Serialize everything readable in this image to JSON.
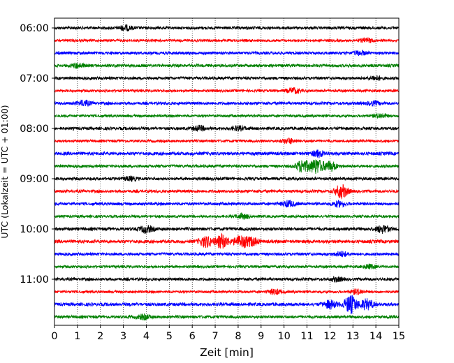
{
  "chart_data": {
    "type": "line",
    "subtype": "helicorder-seismogram",
    "xlabel": "Zeit  [min]",
    "ylabel": "UTC (Lokalzeit = UTC + 01:00)",
    "xlim": [
      0,
      15
    ],
    "x_ticks": [
      "0",
      "1",
      "2",
      "3",
      "4",
      "5",
      "6",
      "7",
      "8",
      "9",
      "10",
      "11",
      "12",
      "13",
      "14",
      "15"
    ],
    "y_ticks": [
      "06:00",
      "07:00",
      "08:00",
      "09:00",
      "10:00",
      "11:00"
    ],
    "grid": "vertical dotted lines at each minute",
    "trace_interval_minutes": 15,
    "first_trace_start": "06:00",
    "colors_cycle": [
      "#000000",
      "#ff0000",
      "#0000ff",
      "#008000"
    ],
    "traces": [
      {
        "start": "06:00",
        "color": "#000000",
        "noise": 0.9,
        "events": [
          {
            "t": 3.1,
            "amp": 1.6
          }
        ]
      },
      {
        "start": "06:15",
        "color": "#ff0000",
        "noise": 0.8,
        "events": [
          {
            "t": 13.6,
            "amp": 1.4
          }
        ]
      },
      {
        "start": "06:30",
        "color": "#0000ff",
        "noise": 0.9,
        "events": [
          {
            "t": 13.3,
            "amp": 1.3
          }
        ]
      },
      {
        "start": "06:45",
        "color": "#008000",
        "noise": 0.9,
        "events": [
          {
            "t": 1.0,
            "amp": 1.5
          }
        ]
      },
      {
        "start": "07:00",
        "color": "#000000",
        "noise": 0.9,
        "events": [
          {
            "t": 14.0,
            "amp": 1.3
          }
        ]
      },
      {
        "start": "07:15",
        "color": "#ff0000",
        "noise": 0.8,
        "events": [
          {
            "t": 10.4,
            "amp": 1.8
          }
        ]
      },
      {
        "start": "07:30",
        "color": "#0000ff",
        "noise": 0.9,
        "events": [
          {
            "t": 1.3,
            "amp": 1.7
          },
          {
            "t": 13.9,
            "amp": 1.3
          }
        ]
      },
      {
        "start": "07:45",
        "color": "#008000",
        "noise": 0.8,
        "events": [
          {
            "t": 14.2,
            "amp": 1.4
          }
        ]
      },
      {
        "start": "08:00",
        "color": "#000000",
        "noise": 0.9,
        "events": [
          {
            "t": 6.3,
            "amp": 1.5
          },
          {
            "t": 8.0,
            "amp": 1.4
          }
        ]
      },
      {
        "start": "08:15",
        "color": "#ff0000",
        "noise": 0.8,
        "events": [
          {
            "t": 10.2,
            "amp": 1.6
          }
        ]
      },
      {
        "start": "08:30",
        "color": "#0000ff",
        "noise": 1.0,
        "events": [
          {
            "t": 11.5,
            "amp": 2.2
          }
        ]
      },
      {
        "start": "08:45",
        "color": "#008000",
        "noise": 0.9,
        "events": [
          {
            "t": 10.8,
            "amp": 4.2
          },
          {
            "t": 11.4,
            "amp": 5.0
          },
          {
            "t": 12.0,
            "amp": 3.2
          }
        ]
      },
      {
        "start": "09:00",
        "color": "#000000",
        "noise": 0.9,
        "events": [
          {
            "t": 3.3,
            "amp": 1.2
          }
        ]
      },
      {
        "start": "09:15",
        "color": "#ff0000",
        "noise": 0.9,
        "events": [
          {
            "t": 12.5,
            "amp": 4.5
          }
        ]
      },
      {
        "start": "09:30",
        "color": "#0000ff",
        "noise": 0.9,
        "events": [
          {
            "t": 10.2,
            "amp": 2.0
          },
          {
            "t": 12.4,
            "amp": 1.8
          }
        ]
      },
      {
        "start": "09:45",
        "color": "#008000",
        "noise": 0.8,
        "events": [
          {
            "t": 8.2,
            "amp": 1.6
          }
        ]
      },
      {
        "start": "10:00",
        "color": "#000000",
        "noise": 1.0,
        "events": [
          {
            "t": 4.0,
            "amp": 2.2
          },
          {
            "t": 14.3,
            "amp": 2.4
          }
        ]
      },
      {
        "start": "10:15",
        "color": "#ff0000",
        "noise": 1.0,
        "events": [
          {
            "t": 6.6,
            "amp": 3.6
          },
          {
            "t": 7.3,
            "amp": 4.6
          },
          {
            "t": 8.1,
            "amp": 4.0
          },
          {
            "t": 8.6,
            "amp": 2.8
          }
        ]
      },
      {
        "start": "10:30",
        "color": "#0000ff",
        "noise": 0.9,
        "events": [
          {
            "t": 12.5,
            "amp": 1.5
          }
        ]
      },
      {
        "start": "10:45",
        "color": "#008000",
        "noise": 0.8,
        "events": [
          {
            "t": 13.7,
            "amp": 1.3
          }
        ]
      },
      {
        "start": "11:00",
        "color": "#000000",
        "noise": 0.9,
        "events": [
          {
            "t": 12.3,
            "amp": 1.3
          }
        ]
      },
      {
        "start": "11:15",
        "color": "#ff0000",
        "noise": 0.8,
        "events": [
          {
            "t": 9.6,
            "amp": 1.6
          },
          {
            "t": 13.2,
            "amp": 1.6
          }
        ]
      },
      {
        "start": "11:30",
        "color": "#0000ff",
        "noise": 1.0,
        "events": [
          {
            "t": 12.0,
            "amp": 2.6
          },
          {
            "t": 12.9,
            "amp": 6.0
          },
          {
            "t": 13.6,
            "amp": 3.4
          }
        ]
      },
      {
        "start": "11:45",
        "color": "#008000",
        "noise": 0.9,
        "events": [
          {
            "t": 3.9,
            "amp": 1.5
          }
        ]
      }
    ]
  }
}
